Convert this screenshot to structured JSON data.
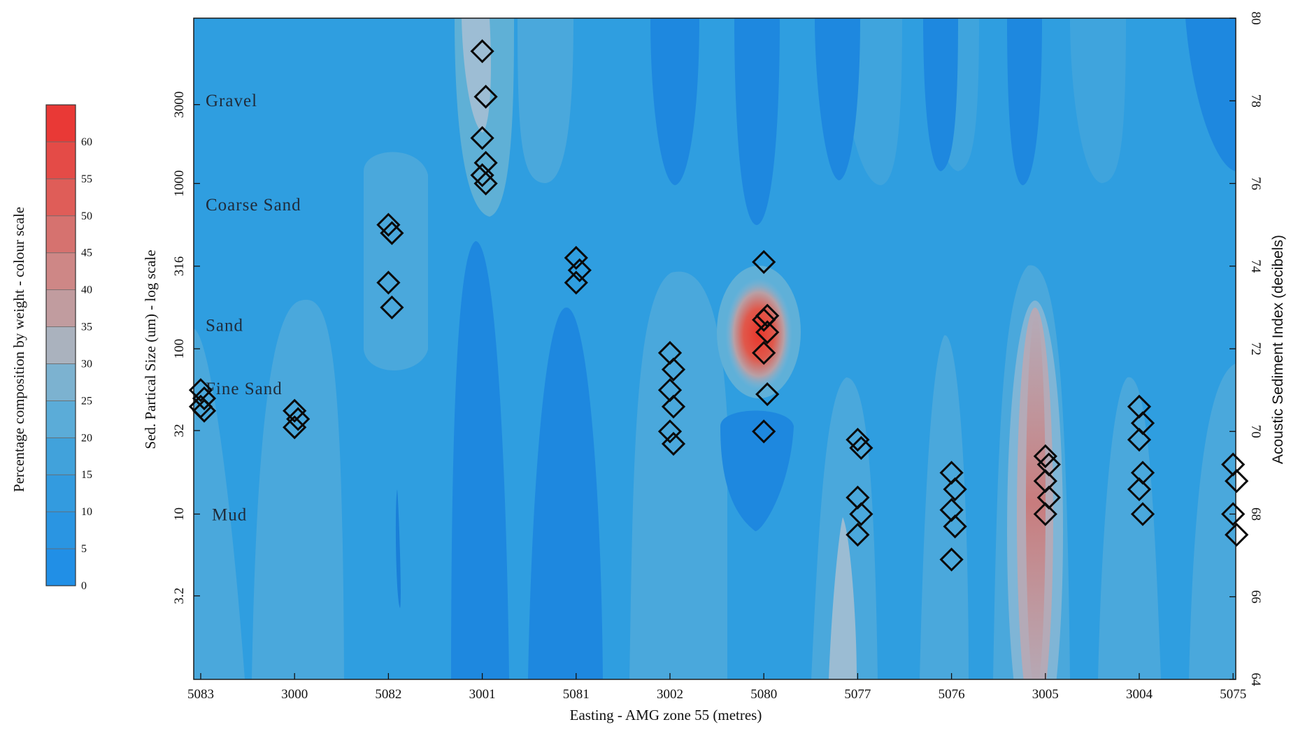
{
  "chart_data": {
    "type": "heatmap",
    "xlabel": "Easting - AMG zone 55 (metres)",
    "ylabel": "Sed. Partical Size (um) - log scale",
    "y2label": "Acoustic Sediment Index (decibels)",
    "colorbar_label": "Percentage composition by weight - colour scale",
    "categories": [
      "5083",
      "3000",
      "5082",
      "3001",
      "5081",
      "3002",
      "5080",
      "5077",
      "5076",
      "3005",
      "3004",
      "5075"
    ],
    "y_scale": "log",
    "ylim": [
      1,
      10000
    ],
    "y_ticks": [
      3.2,
      10,
      32,
      100,
      316,
      1000,
      3000
    ],
    "y_tick_labels": [
      "3.2",
      "10",
      "32",
      "100",
      "316",
      "1000",
      "3000"
    ],
    "y2lim": [
      64,
      80
    ],
    "y2_ticks": [
      64,
      66,
      68,
      70,
      72,
      74,
      76,
      78,
      80
    ],
    "colorbar_ticks": [
      0,
      5,
      10,
      15,
      20,
      25,
      30,
      35,
      40,
      45,
      50,
      55,
      60
    ],
    "colorbar_range": [
      0,
      65
    ],
    "colors": {
      "field_base": "#2f9ee0",
      "low": "#1f87df",
      "high": "#e8322c"
    },
    "size_classes": [
      {
        "label": "Gravel",
        "y": 3200
      },
      {
        "label": "Coarse Sand",
        "y": 750
      },
      {
        "label": "Sand",
        "y": 140
      },
      {
        "label": "Fine Sand",
        "y": 58
      },
      {
        "label": "Mud",
        "y": 10
      }
    ],
    "marker": "diamond",
    "acoustic_index_points": [
      {
        "x": "5083",
        "y": [
          71.0,
          70.8,
          70.6,
          70.5
        ]
      },
      {
        "x": "3000",
        "y": [
          70.5,
          70.3,
          70.1
        ]
      },
      {
        "x": "5082",
        "y": [
          75.0,
          74.8,
          73.6,
          73.0
        ]
      },
      {
        "x": "3001",
        "y": [
          79.2,
          78.1,
          77.1,
          76.5,
          76.2,
          76.0
        ]
      },
      {
        "x": "5081",
        "y": [
          74.2,
          73.9,
          73.6
        ]
      },
      {
        "x": "3002",
        "y": [
          71.9,
          71.5,
          71.0,
          70.6,
          70.0,
          69.7
        ]
      },
      {
        "x": "5080",
        "y": [
          74.1,
          72.8,
          72.7,
          72.4,
          71.9,
          70.9,
          70.0
        ]
      },
      {
        "x": "5077",
        "y": [
          69.8,
          69.6,
          68.4,
          68.0,
          67.5
        ]
      },
      {
        "x": "5076",
        "y": [
          69.0,
          68.6,
          68.1,
          67.7,
          66.9
        ]
      },
      {
        "x": "3005",
        "y": [
          69.4,
          69.2,
          68.8,
          68.4,
          68.0
        ]
      },
      {
        "x": "3004",
        "y": [
          70.6,
          70.2,
          69.8,
          69.0,
          68.6,
          68.0
        ]
      },
      {
        "x": "5075",
        "y": [
          69.2,
          68.8,
          68.0,
          67.5
        ]
      }
    ]
  }
}
